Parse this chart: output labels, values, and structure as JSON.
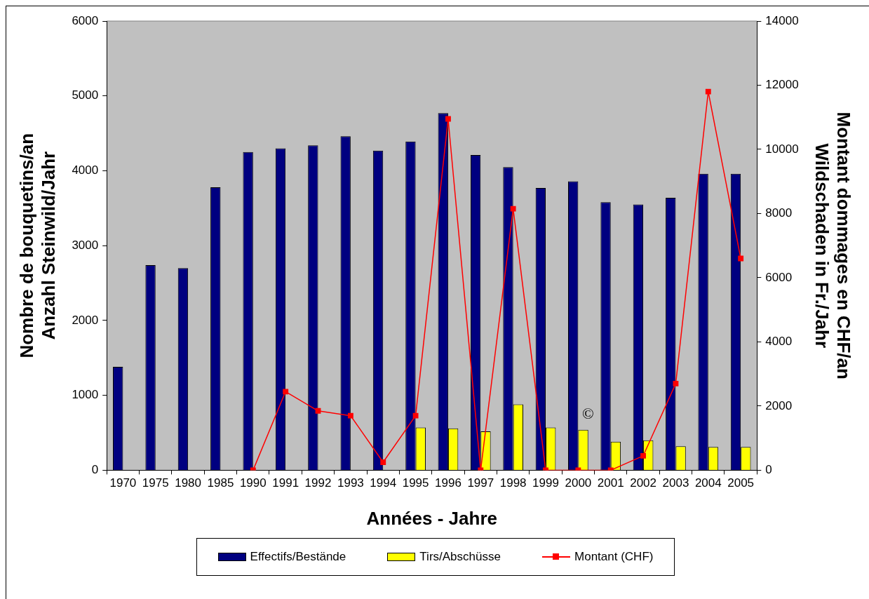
{
  "chart_data": {
    "type": "bar",
    "xlabel": "Années - Jahre",
    "ylabel": "Nombre de bouquetins/an\nAnzahl Steinwild/Jahr",
    "y2label": "Montant dommages en CHF/an\nWildschaden in Fr./Jahr",
    "categories": [
      "1970",
      "1975",
      "1980",
      "1985",
      "1990",
      "1991",
      "1992",
      "1993",
      "1994",
      "1995",
      "1996",
      "1997",
      "1998",
      "1999",
      "2000",
      "2001",
      "2002",
      "2003",
      "2004",
      "2005"
    ],
    "series": [
      {
        "name": "Effectifs/Bestände",
        "color": "#000080",
        "values": [
          1380,
          2740,
          2700,
          3780,
          4250,
          4300,
          4340,
          4460,
          4270,
          4390,
          4770,
          4210,
          4050,
          3770,
          3860,
          3580,
          3550,
          3640,
          3960,
          3960
        ]
      },
      {
        "name": "Tirs/Abschüsse",
        "color": "#ffff00",
        "values": [
          null,
          null,
          null,
          null,
          null,
          null,
          null,
          null,
          null,
          570,
          560,
          520,
          880,
          570,
          540,
          380,
          400,
          320,
          310,
          310
        ]
      },
      {
        "name": "Montant (CHF)",
        "color": "#ff0000",
        "type": "line",
        "axis": "y2",
        "marker": "square",
        "line_style": "solid",
        "values": [
          null,
          null,
          null,
          null,
          0,
          2450,
          1850,
          1700,
          250,
          1700,
          10950,
          0,
          8150,
          0,
          0,
          0,
          450,
          2700,
          11800,
          6600
        ]
      }
    ],
    "ylim": [
      0,
      6000
    ],
    "yticks": [
      0,
      1000,
      2000,
      3000,
      4000,
      5000,
      6000
    ],
    "y2lim": [
      0,
      14000
    ],
    "y2ticks": [
      0,
      2000,
      4000,
      6000,
      8000,
      10000,
      12000,
      14000
    ],
    "grid": false,
    "legend": "bottom",
    "annotations": [
      {
        "text": "©",
        "x": "2000",
        "y": 650
      }
    ]
  }
}
